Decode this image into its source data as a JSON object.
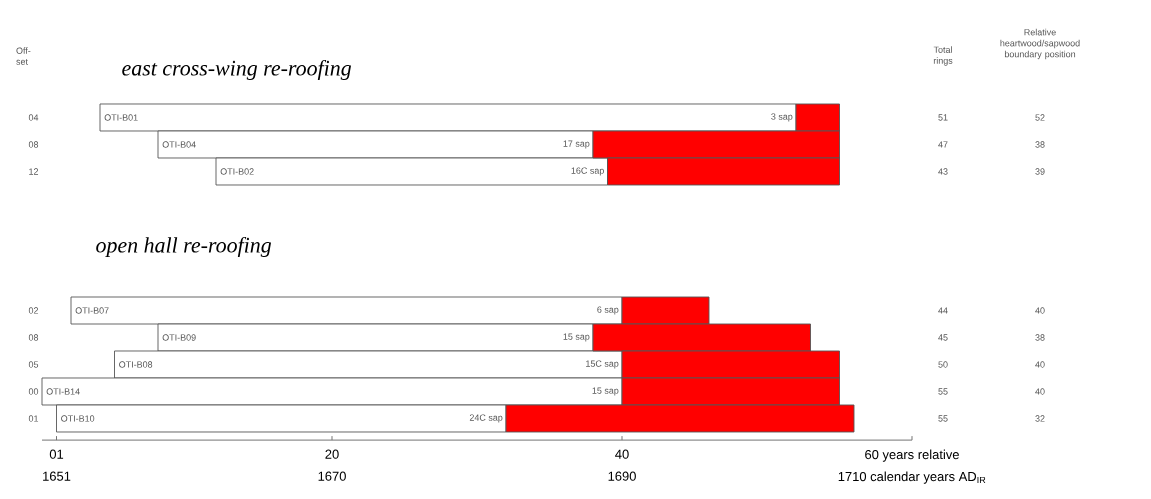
{
  "chart_data": [
    {
      "type": "bar",
      "orientation": "horizontal",
      "title": "east cross-wing re-roofing",
      "ylabel": "Off-set",
      "categories": [
        "04",
        "08",
        "12"
      ],
      "series": [
        {
          "color": "#ffffff",
          "base": [
            4,
            8,
            12
          ],
          "values": [
            48,
            30,
            27
          ]
        },
        {
          "color": "#ff0000",
          "base": [
            52,
            38,
            39
          ],
          "values": [
            3,
            17,
            16
          ],
          "value_labels": [
            "3 sap",
            "17 sap",
            "16C sap"
          ]
        }
      ],
      "annotations": [
        "Total rings",
        "Relative heartwood/sapwood boundary position",
        "OTI-B01",
        "OTI-B04",
        "OTI-B02",
        "51",
        "47",
        "43",
        "52",
        "38",
        "39"
      ],
      "xlim": [
        0,
        60
      ],
      "tick_labels": "y"
    },
    {
      "type": "bar",
      "orientation": "horizontal",
      "title": "open hall re-roofing",
      "categories": [
        "02",
        "08",
        "05",
        "00",
        "01"
      ],
      "series": [
        {
          "color": "#ffffff",
          "base": [
            2,
            8,
            5,
            0,
            1
          ],
          "values": [
            38,
            30,
            35,
            40,
            31
          ]
        },
        {
          "color": "#ff0000",
          "base": [
            40,
            38,
            40,
            40,
            32
          ],
          "values": [
            6,
            15,
            15,
            15,
            24
          ],
          "value_labels": [
            "6 sap",
            "15 sap",
            "15C sap",
            "15 sap",
            "24C sap"
          ]
        }
      ],
      "annotations": [
        "OTI-B07",
        "OTI-B09",
        "OTI-B08",
        "OTI-B14",
        "OTI-B10",
        "44",
        "45",
        "50",
        "55",
        "55",
        "40",
        "38",
        "40",
        "40",
        "32"
      ],
      "xlim": [
        0,
        60
      ],
      "xticks": [
        {
          "value": 1,
          "label": "01"
        },
        {
          "value": 20,
          "label": "20"
        },
        {
          "value": 40,
          "label": "40"
        },
        {
          "value": 60,
          "label": "60 years relative"
        }
      ],
      "x2lim": [
        1650,
        1710
      ],
      "x2ticks": [
        {
          "value": 1651,
          "label": "1651"
        },
        {
          "value": 1670,
          "label": "1670"
        },
        {
          "value": 1690,
          "label": "1690"
        },
        {
          "value": 1710,
          "label": "1710 calendar years AD$_{IR}$"
        }
      ]
    }
  ]
}
